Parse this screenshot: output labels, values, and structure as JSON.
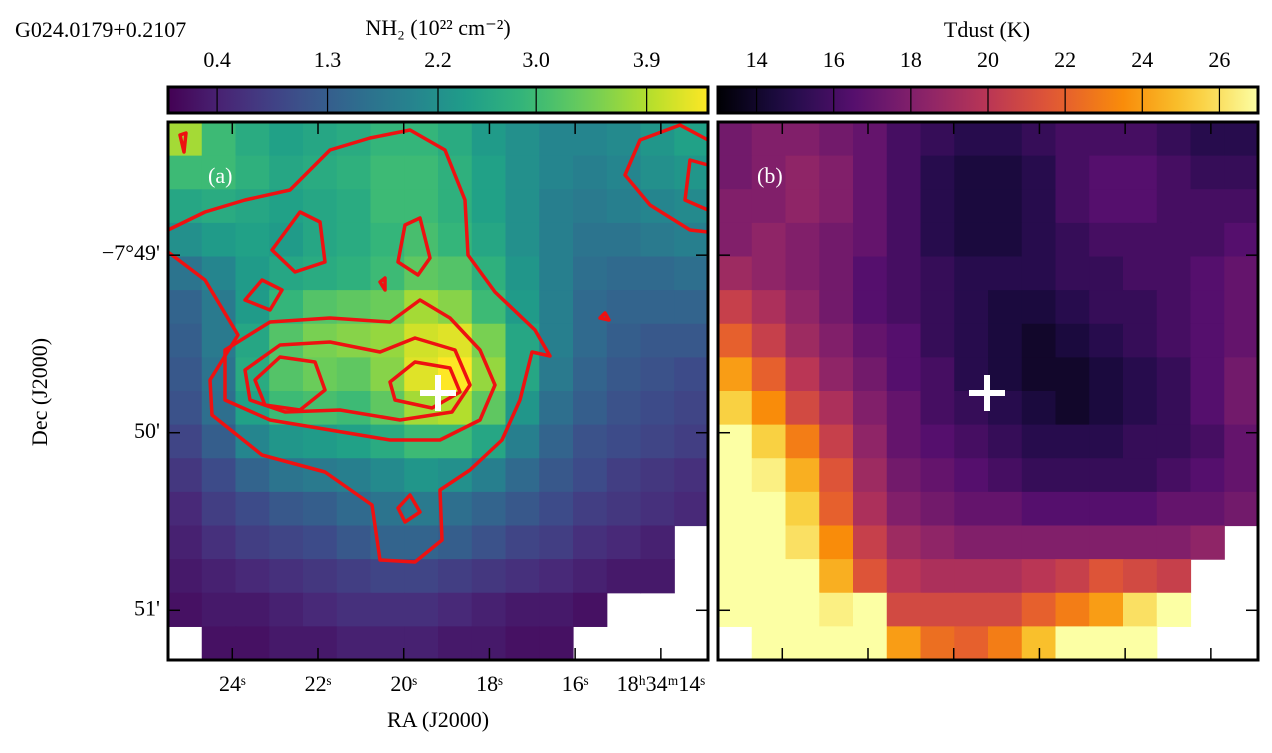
{
  "chart_data": [
    {
      "type": "heatmap",
      "title": "G024.0179+0.2107",
      "annotation": "(a)",
      "colormap": "viridis",
      "colorbar_label": "NH₂ (10²² cm⁻²)",
      "clim": [
        0,
        4.4
      ],
      "cticks": [
        0.4,
        1.3,
        2.2,
        {
          "value": 3,
          "label": "3.0"
        },
        3.9
      ],
      "xlabel": "RA (J2000)",
      "ylabel": "Dec (J2000)",
      "xlim": [
        25.5,
        12.9
      ],
      "xticks": [
        {
          "value": 24,
          "label": "24ˢ"
        },
        {
          "value": 22,
          "label": "22ˢ"
        },
        {
          "value": 20,
          "label": "20ˢ"
        },
        {
          "value": 18,
          "label": "18ˢ"
        },
        {
          "value": 16,
          "label": "16ˢ"
        },
        {
          "value": 14,
          "label": "18ʰ34ᵐ14ˢ"
        }
      ],
      "ylim": [
        -51.28,
        -48.25
      ],
      "yticks": [
        {
          "value": -49,
          "label": "−7°49'"
        },
        {
          "value": -50,
          "label": "50'"
        },
        {
          "value": -51,
          "label": "51'"
        }
      ],
      "values": [
        [
          3.8,
          3.0,
          2.7,
          2.5,
          2.6,
          2.7,
          2.9,
          2.9,
          2.7,
          2.4,
          2.2,
          2.0,
          2.0,
          2.1,
          2.3,
          2.5
        ],
        [
          3.0,
          3.0,
          2.8,
          2.6,
          2.7,
          2.8,
          3.0,
          3.0,
          2.8,
          2.5,
          2.2,
          2.0,
          1.9,
          2.0,
          2.2,
          2.3
        ],
        [
          2.6,
          2.7,
          2.6,
          2.5,
          2.6,
          2.7,
          3.0,
          3.0,
          2.8,
          2.5,
          2.2,
          1.9,
          1.8,
          1.9,
          2.0,
          2.1
        ],
        [
          2.2,
          2.4,
          2.5,
          2.4,
          2.6,
          2.7,
          2.9,
          3.1,
          2.9,
          2.6,
          2.2,
          1.9,
          1.7,
          1.7,
          1.8,
          1.9
        ],
        [
          1.7,
          2.0,
          2.4,
          2.6,
          2.7,
          2.8,
          3.0,
          3.3,
          3.2,
          2.8,
          2.3,
          1.9,
          1.6,
          1.5,
          1.5,
          1.6
        ],
        [
          1.4,
          1.8,
          2.4,
          2.9,
          3.2,
          3.3,
          3.4,
          3.8,
          3.6,
          3.0,
          2.4,
          1.9,
          1.5,
          1.4,
          1.4,
          1.4
        ],
        [
          1.3,
          1.8,
          2.6,
          3.2,
          3.5,
          3.6,
          3.7,
          4.1,
          4.2,
          3.5,
          2.6,
          1.9,
          1.5,
          1.3,
          1.2,
          1.2
        ],
        [
          1.2,
          1.7,
          2.7,
          3.2,
          3.4,
          3.3,
          3.6,
          4.2,
          4.4,
          3.7,
          2.6,
          1.8,
          1.4,
          1.2,
          1.1,
          1.0
        ],
        [
          1.1,
          1.6,
          2.5,
          3.0,
          3.1,
          3.0,
          3.3,
          3.8,
          3.9,
          3.3,
          2.3,
          1.6,
          1.3,
          1.1,
          1.0,
          0.9
        ],
        [
          0.9,
          1.3,
          2.0,
          2.3,
          2.4,
          2.5,
          2.7,
          3.0,
          3.0,
          2.6,
          1.9,
          1.4,
          1.1,
          1.0,
          0.9,
          0.8
        ],
        [
          0.7,
          1.0,
          1.4,
          1.7,
          1.8,
          1.9,
          2.1,
          2.3,
          2.2,
          1.9,
          1.5,
          1.2,
          1.0,
          0.8,
          0.7,
          0.6
        ],
        [
          0.5,
          0.8,
          1.0,
          1.2,
          1.3,
          1.5,
          1.7,
          1.8,
          1.6,
          1.4,
          1.2,
          1.0,
          0.8,
          0.7,
          0.6,
          0.5
        ],
        [
          0.4,
          0.6,
          0.8,
          0.9,
          1.0,
          1.2,
          1.4,
          1.4,
          1.3,
          1.1,
          0.9,
          0.8,
          0.6,
          0.5,
          0.4,
          null
        ],
        [
          0.3,
          0.4,
          0.5,
          0.6,
          0.7,
          0.8,
          0.9,
          0.9,
          0.8,
          0.7,
          0.6,
          0.5,
          0.4,
          0.3,
          0.3,
          null
        ],
        [
          0.2,
          0.3,
          0.3,
          0.4,
          0.5,
          0.6,
          0.6,
          0.6,
          0.5,
          0.4,
          0.3,
          0.3,
          0.2,
          null,
          null,
          null
        ],
        [
          null,
          0.2,
          0.2,
          0.3,
          0.3,
          0.4,
          0.4,
          0.4,
          0.3,
          0.3,
          0.2,
          0.2,
          null,
          null,
          null,
          null
        ]
      ]
    },
    {
      "type": "heatmap",
      "annotation": "(b)",
      "colormap": "inferno",
      "colorbar_label": "Tdust (K)",
      "clim": [
        13,
        27
      ],
      "cticks": [
        14,
        16,
        18,
        20,
        22,
        24,
        26
      ],
      "values": [
        [
          17.5,
          18,
          18,
          17.5,
          17,
          16,
          15.5,
          15,
          15,
          15.5,
          16,
          16,
          16,
          15.5,
          15,
          15
        ],
        [
          17.5,
          18,
          18.5,
          18,
          17,
          16,
          15,
          14.5,
          14.5,
          15,
          16,
          16.5,
          16.5,
          16,
          15.5,
          15.5
        ],
        [
          18,
          18,
          18.5,
          18,
          17,
          16,
          15,
          14.5,
          14.5,
          15,
          16,
          16.5,
          16.5,
          16,
          16,
          16
        ],
        [
          18,
          18.5,
          18,
          17.5,
          17,
          16,
          15,
          14.5,
          14.5,
          15,
          15.5,
          16,
          16,
          16,
          16,
          16.5
        ],
        [
          19,
          18.5,
          18,
          17.5,
          16.5,
          16,
          15.5,
          15,
          15,
          15,
          15.5,
          15.5,
          16,
          16,
          16.5,
          17
        ],
        [
          20.5,
          19.5,
          18.5,
          17.5,
          16.5,
          16,
          15.5,
          15,
          14.5,
          14.5,
          15,
          15.5,
          15.5,
          16,
          16.5,
          17
        ],
        [
          22,
          20.5,
          19,
          18,
          17,
          16.5,
          15.5,
          15,
          14.5,
          14,
          14.5,
          15,
          15.5,
          16,
          16.5,
          17
        ],
        [
          24,
          22,
          20,
          18.5,
          17.5,
          16.5,
          16,
          15,
          14.5,
          14,
          14,
          14.5,
          15,
          15.5,
          16.5,
          17.5
        ],
        [
          25.5,
          23.5,
          21,
          19.5,
          18,
          17,
          16,
          15.5,
          15,
          14.5,
          14,
          14.5,
          15,
          15.5,
          16.5,
          17.5
        ],
        [
          27,
          25.5,
          23,
          20.5,
          18.5,
          17,
          16.5,
          16,
          15.5,
          15,
          15,
          15,
          15.5,
          15.5,
          16,
          17
        ],
        [
          27,
          26.5,
          24.5,
          21.5,
          19,
          17.5,
          17,
          16.5,
          16,
          15.5,
          15.5,
          15.5,
          15.5,
          16,
          16.5,
          17
        ],
        [
          27,
          27,
          25.5,
          22,
          19.5,
          18,
          17.5,
          17,
          17,
          16.5,
          16.5,
          16.5,
          16.5,
          17,
          17,
          17.5
        ],
        [
          27,
          27,
          26,
          23.5,
          20.5,
          19,
          18.5,
          18,
          18,
          18,
          18,
          18,
          18,
          18,
          18.5,
          null
        ],
        [
          27,
          27,
          27,
          24.5,
          21.5,
          20,
          19.5,
          19.5,
          19.5,
          20,
          20.5,
          21.5,
          21,
          20.5,
          null,
          null
        ],
        [
          27,
          27,
          27,
          26.5,
          27,
          21,
          21,
          21,
          21,
          22,
          23,
          24,
          26,
          27,
          null,
          null
        ],
        [
          null,
          27,
          27,
          27,
          27,
          24,
          22.5,
          22,
          23,
          25,
          27,
          27,
          27,
          null,
          null,
          null
        ]
      ]
    }
  ]
}
